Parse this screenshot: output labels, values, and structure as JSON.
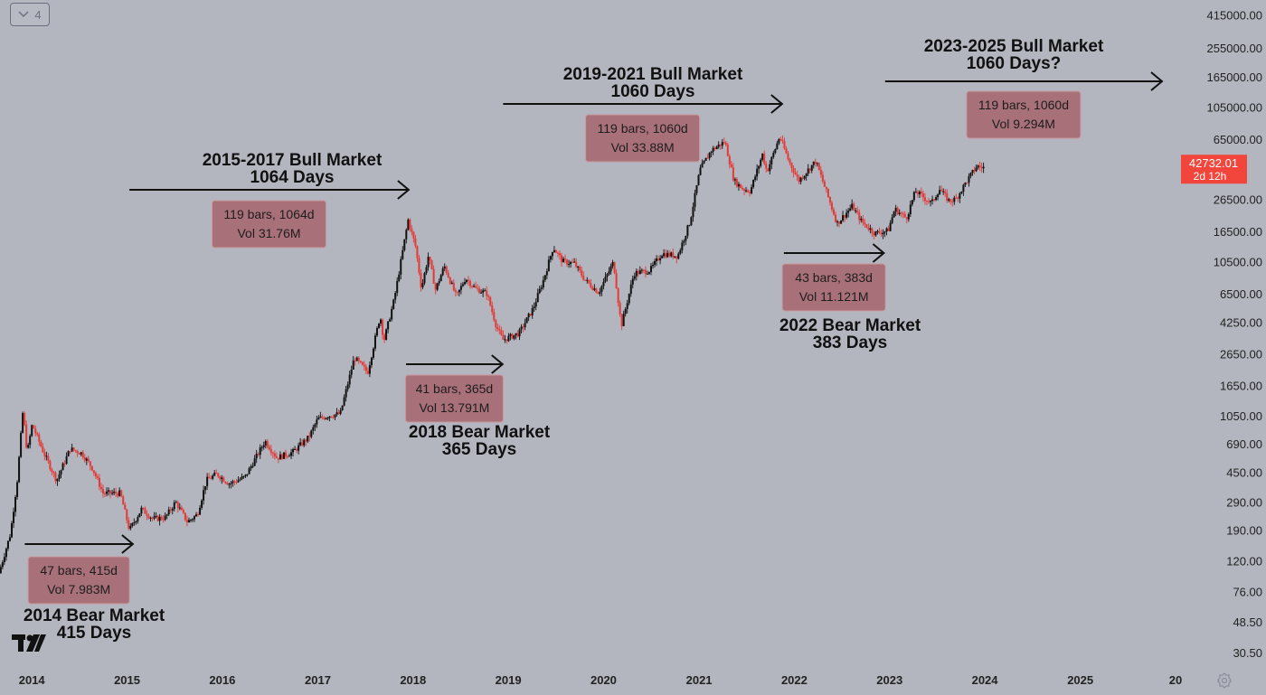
{
  "toolbar": {
    "collapse_label": "4"
  },
  "icons": {
    "collapse": "chevron-down-icon",
    "logo": "tradingview-logo",
    "settings": "gear-icon"
  },
  "colors": {
    "background": "#b3b5bf",
    "candle_up": "#111111",
    "candle_down": "#e53935",
    "label_box": "#a87078",
    "label_box_border": "#c99aa0",
    "price_tag": "#f2463c"
  },
  "chart_data": {
    "type": "candlestick",
    "y_scale": "log",
    "ylim": [
      24,
      520000
    ],
    "xlim": [
      "2013-09-01",
      "2026-01-01"
    ],
    "grid": false,
    "x_ticks": [
      "2014",
      "2015",
      "2016",
      "2017",
      "2018",
      "2019",
      "2020",
      "2021",
      "2022",
      "2023",
      "2024",
      "2025",
      "20"
    ],
    "y_ticks": [
      "415000.00",
      "255000.00",
      "165000.00",
      "105000.00",
      "65000.00",
      "26500.00",
      "16500.00",
      "10500.00",
      "6500.00",
      "4250.00",
      "2650.00",
      "1650.00",
      "1050.00",
      "690.00",
      "450.00",
      "290.00",
      "190.00",
      "120.00",
      "76.00",
      "48.50",
      "30.50"
    ],
    "last_price": {
      "value": "42732.01",
      "countdown": "2d 12h"
    },
    "price_path": [
      [
        "2013-09-01",
        100
      ],
      [
        "2013-10-15",
        180
      ],
      [
        "2013-11-10",
        400
      ],
      [
        "2013-12-02",
        1140
      ],
      [
        "2013-12-18",
        600
      ],
      [
        "2014-01-06",
        920
      ],
      [
        "2014-02-20",
        600
      ],
      [
        "2014-04-10",
        400
      ],
      [
        "2014-06-01",
        640
      ],
      [
        "2014-07-15",
        600
      ],
      [
        "2014-08-25",
        480
      ],
      [
        "2014-10-05",
        330
      ],
      [
        "2014-12-10",
        330
      ],
      [
        "2015-01-14",
        190
      ],
      [
        "2015-03-01",
        260
      ],
      [
        "2015-04-15",
        225
      ],
      [
        "2015-06-01",
        230
      ],
      [
        "2015-07-10",
        290
      ],
      [
        "2015-08-24",
        215
      ],
      [
        "2015-10-01",
        240
      ],
      [
        "2015-11-05",
        400
      ],
      [
        "2015-12-15",
        440
      ],
      [
        "2016-02-01",
        380
      ],
      [
        "2016-04-01",
        420
      ],
      [
        "2016-06-17",
        720
      ],
      [
        "2016-08-01",
        560
      ],
      [
        "2016-10-01",
        610
      ],
      [
        "2016-12-01",
        760
      ],
      [
        "2017-01-05",
        1000
      ],
      [
        "2017-02-15",
        1050
      ],
      [
        "2017-04-01",
        1080
      ],
      [
        "2017-05-25",
        2500
      ],
      [
        "2017-07-15",
        2000
      ],
      [
        "2017-09-01",
        4700
      ],
      [
        "2017-09-15",
        3200
      ],
      [
        "2017-10-25",
        6000
      ],
      [
        "2017-12-17",
        19500
      ],
      [
        "2018-01-15",
        13000
      ],
      [
        "2018-02-06",
        7000
      ],
      [
        "2018-03-05",
        11500
      ],
      [
        "2018-04-01",
        6900
      ],
      [
        "2018-05-05",
        9800
      ],
      [
        "2018-06-20",
        6200
      ],
      [
        "2018-07-25",
        8200
      ],
      [
        "2018-09-01",
        7000
      ],
      [
        "2018-10-15",
        6500
      ],
      [
        "2018-11-20",
        4000
      ],
      [
        "2018-12-15",
        3250
      ],
      [
        "2019-02-15",
        3600
      ],
      [
        "2019-04-10",
        5200
      ],
      [
        "2019-05-20",
        8000
      ],
      [
        "2019-06-26",
        13000
      ],
      [
        "2019-08-01",
        10500
      ],
      [
        "2019-09-15",
        10200
      ],
      [
        "2019-10-25",
        8000
      ],
      [
        "2019-12-17",
        6600
      ],
      [
        "2020-02-12",
        10400
      ],
      [
        "2020-03-13",
        4000
      ],
      [
        "2020-05-01",
        8800
      ],
      [
        "2020-07-01",
        9200
      ],
      [
        "2020-08-15",
        11800
      ],
      [
        "2020-10-15",
        11400
      ],
      [
        "2020-12-01",
        19000
      ],
      [
        "2021-01-08",
        41000
      ],
      [
        "2021-02-20",
        55000
      ],
      [
        "2021-04-14",
        63000
      ],
      [
        "2021-05-19",
        35000
      ],
      [
        "2021-06-22",
        31000
      ],
      [
        "2021-07-20",
        30000
      ],
      [
        "2021-09-05",
        52000
      ],
      [
        "2021-09-22",
        40000
      ],
      [
        "2021-11-10",
        68000
      ],
      [
        "2021-12-15",
        47000
      ],
      [
        "2022-01-22",
        35000
      ],
      [
        "2022-03-28",
        47000
      ],
      [
        "2022-05-10",
        29000
      ],
      [
        "2022-06-18",
        18500
      ],
      [
        "2022-08-15",
        24000
      ],
      [
        "2022-09-20",
        19000
      ],
      [
        "2022-11-09",
        16000
      ],
      [
        "2022-12-30",
        16600
      ],
      [
        "2023-01-25",
        23000
      ],
      [
        "2023-03-10",
        20000
      ],
      [
        "2023-04-14",
        30000
      ],
      [
        "2023-06-15",
        25000
      ],
      [
        "2023-07-15",
        31000
      ],
      [
        "2023-08-20",
        26000
      ],
      [
        "2023-09-15",
        26500
      ],
      [
        "2023-10-24",
        34000
      ],
      [
        "2023-12-05",
        43500
      ],
      [
        "2023-12-24",
        42732
      ]
    ],
    "annotations": [
      {
        "title": "2014 Bear Market",
        "subtitle": "415 Days",
        "bars": "47 bars, 415d",
        "vol": "Vol 7.983M",
        "from": "2013-12-05",
        "to": "2015-01-23"
      },
      {
        "title": "2015-2017 Bull Market",
        "subtitle": "1064 Days",
        "bars": "119 bars, 1064d",
        "vol": "Vol 31.76M",
        "from": "2015-01-10",
        "to": "2017-12-15"
      },
      {
        "title": "2018 Bear Market",
        "subtitle": "365 Days",
        "bars": "41 bars, 365d",
        "vol": "Vol 13.791M",
        "from": "2017-12-05",
        "to": "2018-12-10"
      },
      {
        "title": "2019-2021 Bull Market",
        "subtitle": "1060 Days",
        "bars": "119 bars, 1060d",
        "vol": "Vol 33.88M",
        "from": "2018-12-12",
        "to": "2021-11-15"
      },
      {
        "title": "2022 Bear Market",
        "subtitle": "383 Days",
        "bars": "43 bars, 383d",
        "vol": "Vol 11.121M",
        "from": "2021-11-22",
        "to": "2022-12-10"
      },
      {
        "title": "2023-2025 Bull Market",
        "subtitle": "1060 Days?",
        "bars": "119 bars, 1060d",
        "vol": "Vol 9.294M",
        "from": "2022-12-15",
        "to": "2025-11-10"
      }
    ]
  }
}
